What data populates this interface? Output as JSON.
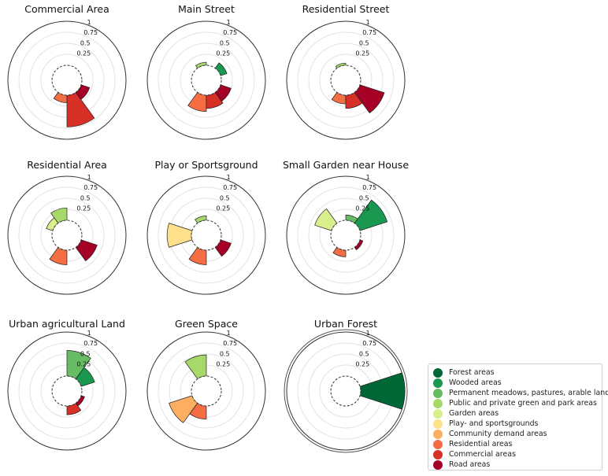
{
  "chart_data": {
    "type": "polar-bar",
    "sector_order": [
      "Forest areas",
      "Wooded areas",
      "Permanent meadows, pastures, arable land",
      "Public and private green and park areas",
      "Garden areas",
      "Play- and sportsgrounds",
      "Community demand areas",
      "Residential areas",
      "Commercial areas",
      "Road areas"
    ],
    "radial_ticks": [
      "0.25",
      "0.5",
      "0.75",
      "1"
    ],
    "rlim": [
      0,
      1
    ],
    "charts": [
      {
        "title": "Commercial Area",
        "values": [
          0,
          0,
          0,
          0,
          0,
          0,
          0,
          0.17,
          0.72,
          0.2
        ]
      },
      {
        "title": "Main Street",
        "values": [
          0,
          0.15,
          0,
          0.07,
          0,
          0,
          0,
          0.37,
          0.3,
          0.25
        ]
      },
      {
        "title": "Residential Street",
        "values": [
          0,
          0,
          0,
          0.05,
          0,
          0,
          0,
          0.2,
          0.3,
          0.58
        ]
      },
      {
        "title": "Residential Area",
        "values": [
          0,
          0,
          0,
          0.28,
          0.15,
          0,
          0,
          0.33,
          0,
          0.38
        ]
      },
      {
        "title": "Play or Sportsground",
        "values": [
          0,
          0,
          0,
          0.1,
          0,
          0.55,
          0,
          0.33,
          0,
          0.25
        ]
      },
      {
        "title": "Small Garden near House",
        "values": [
          0,
          0.65,
          0.12,
          0,
          0.4,
          0,
          0,
          0.15,
          0,
          0.07
        ]
      },
      {
        "title": "Urban agricultural Land",
        "values": [
          0,
          0.32,
          0.58,
          0,
          0,
          0,
          0,
          0,
          0.2,
          0.08
        ]
      },
      {
        "title": "Green Space",
        "values": [
          0,
          0,
          0,
          0.48,
          0,
          0,
          0.55,
          0.3,
          0,
          0
        ]
      },
      {
        "title": "Urban Forest",
        "values": [
          1.0,
          0,
          0,
          0,
          0,
          0,
          0,
          0,
          0,
          0
        ]
      }
    ]
  },
  "legend": {
    "items": [
      {
        "label": "Forest areas",
        "color": "#006837"
      },
      {
        "label": "Wooded areas",
        "color": "#1a9850"
      },
      {
        "label": "Permanent meadows, pastures, arable land",
        "color": "#66bd63"
      },
      {
        "label": "Public and private green and park areas",
        "color": "#a6d96a"
      },
      {
        "label": "Garden areas",
        "color": "#d9ef8b"
      },
      {
        "label": "Play- and sportsgrounds",
        "color": "#fee08b"
      },
      {
        "label": "Community demand areas",
        "color": "#fdae61"
      },
      {
        "label": "Residential areas",
        "color": "#f46d43"
      },
      {
        "label": "Commercial areas",
        "color": "#d73027"
      },
      {
        "label": "Road areas",
        "color": "#a50026"
      }
    ]
  }
}
